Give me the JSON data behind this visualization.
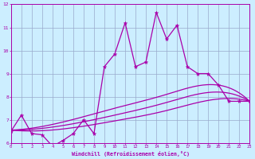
{
  "xlabel": "Windchill (Refroidissement éolien,°C)",
  "bg_color": "#cceeff",
  "grid_color": "#99aacc",
  "line_color": "#aa00aa",
  "x_min": 0,
  "x_max": 23,
  "y_min": 6,
  "y_max": 12,
  "line1_x": [
    0,
    1,
    2,
    3,
    4,
    5,
    6,
    7,
    8,
    9,
    10,
    11,
    12,
    13,
    14,
    15,
    16,
    17,
    18,
    19,
    20,
    21,
    22,
    23
  ],
  "line1_y": [
    6.5,
    7.2,
    6.4,
    6.35,
    5.85,
    6.1,
    6.4,
    7.0,
    6.4,
    9.3,
    9.85,
    11.2,
    9.3,
    9.5,
    11.65,
    10.5,
    11.1,
    9.3,
    9.0,
    9.0,
    8.5,
    7.8,
    7.8,
    7.8
  ],
  "line2_x": [
    0,
    23
  ],
  "line2_y": [
    6.55,
    7.8
  ],
  "line3_x": [
    0,
    23
  ],
  "line3_y": [
    6.55,
    7.8
  ],
  "line4_x": [
    0,
    23
  ],
  "line4_y": [
    6.55,
    7.8
  ],
  "line2_ctrl_x": [
    0,
    5,
    10,
    15,
    20,
    23
  ],
  "line2_ctrl_y": [
    6.55,
    6.9,
    7.5,
    8.1,
    8.5,
    7.8
  ],
  "line3_ctrl_x": [
    0,
    5,
    10,
    15,
    20,
    23
  ],
  "line3_ctrl_y": [
    6.55,
    6.75,
    7.2,
    7.75,
    8.2,
    7.8
  ],
  "line4_ctrl_x": [
    0,
    5,
    10,
    15,
    20,
    23
  ],
  "line4_ctrl_y": [
    6.55,
    6.6,
    6.95,
    7.4,
    7.9,
    7.8
  ]
}
